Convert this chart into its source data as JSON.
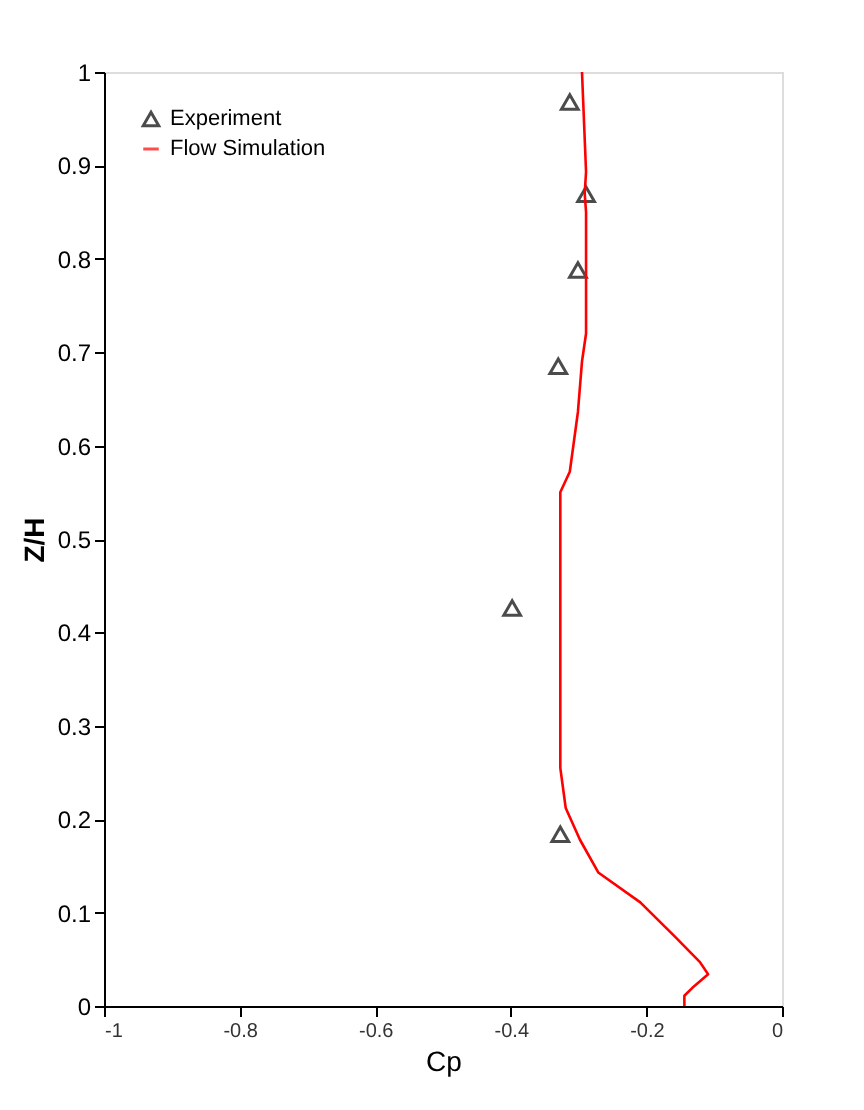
{
  "chart_data": {
    "type": "line",
    "xlabel": "Cp",
    "ylabel": "Z/H",
    "xlim": [
      -1,
      0
    ],
    "ylim": [
      0,
      1
    ],
    "xticks": [
      -1,
      -0.8,
      -0.6,
      -0.4,
      -0.2,
      0
    ],
    "yticks": [
      0,
      0.1,
      0.2,
      0.3,
      0.4,
      0.5,
      0.6,
      0.7,
      0.8,
      0.9,
      1
    ],
    "grid": false,
    "legend": "top left",
    "series": [
      {
        "name": "Experiment",
        "type": "scatter",
        "marker": "triangle",
        "color": "#000000",
        "x": [
          -0.313,
          -0.289,
          -0.301,
          -0.33,
          -0.398,
          -0.327
        ],
        "values": [
          0.968,
          0.869,
          0.788,
          0.685,
          0.426,
          0.184
        ]
      },
      {
        "name": "Flow Simulation",
        "marker": "none",
        "line_style": "solid",
        "color": "#ff0000",
        "x": [
          -0.295,
          -0.289,
          -0.291,
          -0.289,
          -0.289,
          -0.295,
          -0.301,
          -0.313,
          -0.327,
          -0.327,
          -0.319,
          -0.298,
          -0.271,
          -0.209,
          -0.159,
          -0.121,
          -0.109,
          -0.13,
          -0.144,
          -0.144
        ],
        "values": [
          1.0,
          0.893,
          0.87,
          0.85,
          0.72,
          0.69,
          0.636,
          0.572,
          0.55,
          0.255,
          0.212,
          0.178,
          0.143,
          0.111,
          0.075,
          0.047,
          0.034,
          0.021,
          0.011,
          0
        ]
      }
    ]
  }
}
